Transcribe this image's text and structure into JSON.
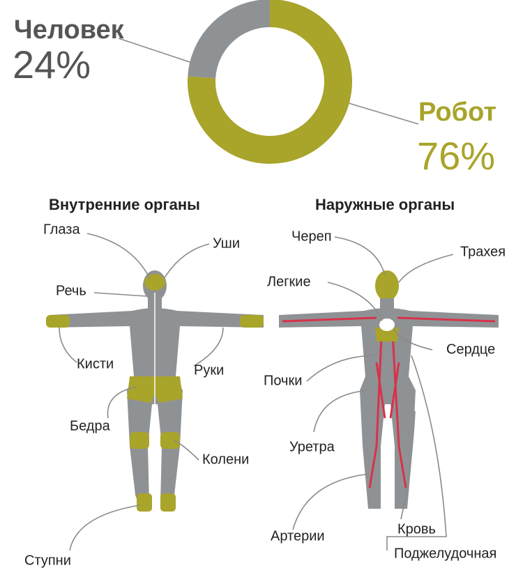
{
  "chart_data": {
    "type": "pie",
    "categories": [
      "Человек",
      "Робот"
    ],
    "values": [
      24,
      76
    ],
    "value_labels": [
      "24%",
      "76%"
    ],
    "colors": [
      "#8f9295",
      "#a9a42a"
    ]
  },
  "diagrams": [
    {
      "title": "Внутренние органы",
      "labels": [
        "Глаза",
        "Уши",
        "Речь",
        "Кисти",
        "Руки",
        "Бедра",
        "Колени",
        "Ступни"
      ]
    },
    {
      "title": "Наружные органы",
      "labels": [
        "Череп",
        "Трахея",
        "Легкие",
        "Сердце",
        "Почки",
        "Уретра",
        "Артерии",
        "Кровь",
        "Поджелудочная"
      ]
    }
  ]
}
